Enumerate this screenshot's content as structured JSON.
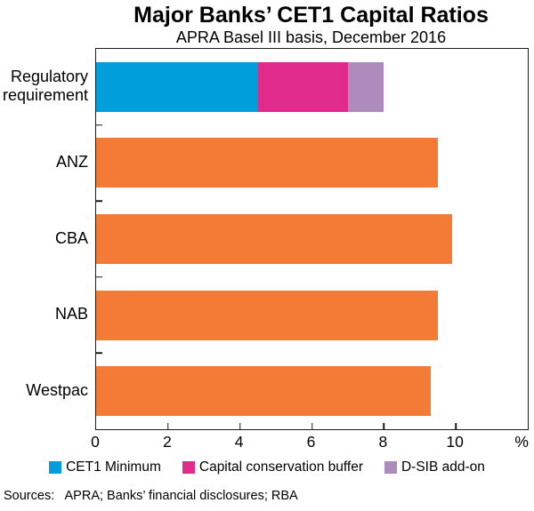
{
  "title": "Major Banks’ CET1 Capital Ratios",
  "subtitle": "APRA Basel III basis, December 2016",
  "sources_line": "Sources:   APRA; Banks’ financial disclosures; RBA",
  "colors": {
    "cet1_minimum": "#009FDB",
    "conservation_buffer": "#E02A8C",
    "dsib_addon": "#AE8BBD",
    "bank_bar": "#F47B36",
    "axis": "#1a1a1a",
    "background": "#ffffff"
  },
  "chart_data": {
    "type": "bar",
    "orientation": "horizontal",
    "title": "Major Banks’ CET1 Capital Ratios",
    "subtitle": "APRA Basel III basis, December 2016",
    "categories": [
      "Regulatory requirement",
      "ANZ",
      "CBA",
      "NAB",
      "Westpac"
    ],
    "series": [
      {
        "name": "CET1 Minimum",
        "color": "#009FDB",
        "legend": true,
        "values": [
          4.5,
          0,
          0,
          0,
          0
        ]
      },
      {
        "name": "Capital conservation buffer",
        "color": "#E02A8C",
        "legend": true,
        "values": [
          2.5,
          0,
          0,
          0,
          0
        ]
      },
      {
        "name": "D-SIB add-on",
        "color": "#AE8BBD",
        "legend": true,
        "values": [
          1.0,
          0,
          0,
          0,
          0
        ]
      },
      {
        "name": "Bank CET1 capital ratio",
        "color": "#F47B36",
        "legend": false,
        "values": [
          0,
          9.5,
          9.9,
          9.5,
          9.3
        ]
      }
    ],
    "stacked": true,
    "xlim": [
      0,
      12
    ],
    "xticks": [
      0,
      2,
      4,
      6,
      8,
      10
    ],
    "x_unit": "%",
    "grid": false,
    "legend_position": "bottom",
    "legend_entries": [
      "CET1 Minimum",
      "Capital conservation buffer",
      "D-SIB add-on"
    ]
  }
}
